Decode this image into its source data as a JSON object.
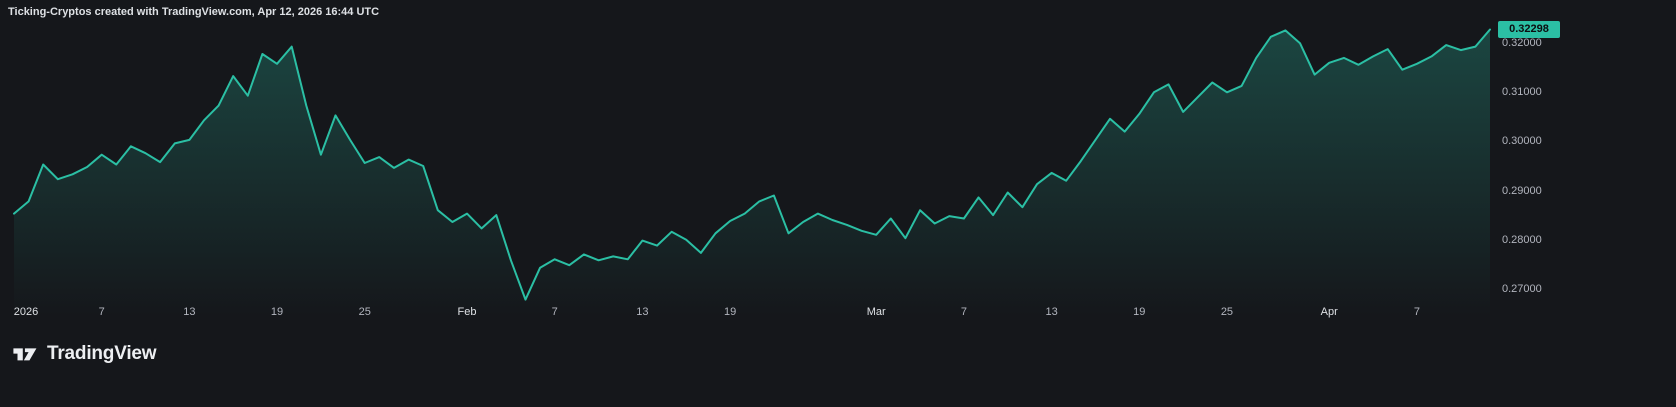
{
  "header": {
    "title": "Ticking-Cryptos created with TradingView.com, Apr 12, 2026 16:44 UTC"
  },
  "colors": {
    "background": "#15171b",
    "line": "#2bbfa4",
    "text_dim": "#b2b5be",
    "text_bright": "#dde0e4",
    "badge_text": "#0c0d10",
    "logo_text": "#edeff2"
  },
  "price_scale": {
    "last_price_label": "0.32298",
    "labels": [
      {
        "label": "0.32000",
        "value": 0.32
      },
      {
        "label": "0.31000",
        "value": 0.31
      },
      {
        "label": "0.30000",
        "value": 0.3
      },
      {
        "label": "0.29000",
        "value": 0.29
      },
      {
        "label": "0.28000",
        "value": 0.28
      },
      {
        "label": "0.27000",
        "value": 0.27
      }
    ]
  },
  "time_scale": {
    "ticks": [
      {
        "label": "2026",
        "day": 0,
        "major": true
      },
      {
        "label": "7",
        "day": 6,
        "major": false
      },
      {
        "label": "13",
        "day": 12,
        "major": false
      },
      {
        "label": "19",
        "day": 18,
        "major": false
      },
      {
        "label": "25",
        "day": 24,
        "major": false
      },
      {
        "label": "Feb",
        "day": 31,
        "major": true
      },
      {
        "label": "7",
        "day": 37,
        "major": false
      },
      {
        "label": "13",
        "day": 43,
        "major": false
      },
      {
        "label": "19",
        "day": 49,
        "major": false
      },
      {
        "label": "Mar",
        "day": 59,
        "major": true
      },
      {
        "label": "7",
        "day": 65,
        "major": false
      },
      {
        "label": "13",
        "day": 71,
        "major": false
      },
      {
        "label": "19",
        "day": 77,
        "major": false
      },
      {
        "label": "25",
        "day": 83,
        "major": false
      },
      {
        "label": "Apr",
        "day": 90,
        "major": true
      },
      {
        "label": "7",
        "day": 96,
        "major": false
      }
    ]
  },
  "footer": {
    "brand": "TradingView"
  },
  "chart_data": {
    "type": "area",
    "title": "Ticking-Cryptos",
    "x_start": "2026-01-01",
    "x_end": "2026-04-12",
    "x_interval": "1 day",
    "y_axis_side": "right",
    "grid": false,
    "ylim": [
      0.2669,
      0.3239
    ],
    "last_value": 0.32298,
    "series": [
      {
        "name": "Ticking-Cryptos",
        "values": [
          0.2855,
          0.288,
          0.2955,
          0.2925,
          0.2935,
          0.295,
          0.2975,
          0.2955,
          0.2992,
          0.2978,
          0.296,
          0.2998,
          0.3005,
          0.3045,
          0.3075,
          0.3135,
          0.3095,
          0.318,
          0.316,
          0.3195,
          0.3075,
          0.2975,
          0.3055,
          0.3005,
          0.2958,
          0.297,
          0.2948,
          0.2965,
          0.2952,
          0.2862,
          0.2838,
          0.2855,
          0.2825,
          0.2852,
          0.276,
          0.268,
          0.2745,
          0.2762,
          0.275,
          0.2772,
          0.276,
          0.2768,
          0.2762,
          0.28,
          0.279,
          0.2818,
          0.2802,
          0.2775,
          0.2815,
          0.284,
          0.2855,
          0.288,
          0.2892,
          0.2815,
          0.2838,
          0.2855,
          0.2842,
          0.2832,
          0.282,
          0.2812,
          0.2845,
          0.2805,
          0.2862,
          0.2835,
          0.285,
          0.2845,
          0.2888,
          0.2852,
          0.2898,
          0.2868,
          0.2915,
          0.2938,
          0.2922,
          0.2962,
          0.3005,
          0.3048,
          0.3022,
          0.3058,
          0.3102,
          0.3118,
          0.3062,
          0.3092,
          0.3122,
          0.3102,
          0.3115,
          0.3172,
          0.3215,
          0.3228,
          0.3202,
          0.3138,
          0.3162,
          0.3172,
          0.3158,
          0.3175,
          0.319,
          0.3148,
          0.316,
          0.3175,
          0.3198,
          0.3188,
          0.3195,
          0.32298
        ]
      }
    ]
  }
}
